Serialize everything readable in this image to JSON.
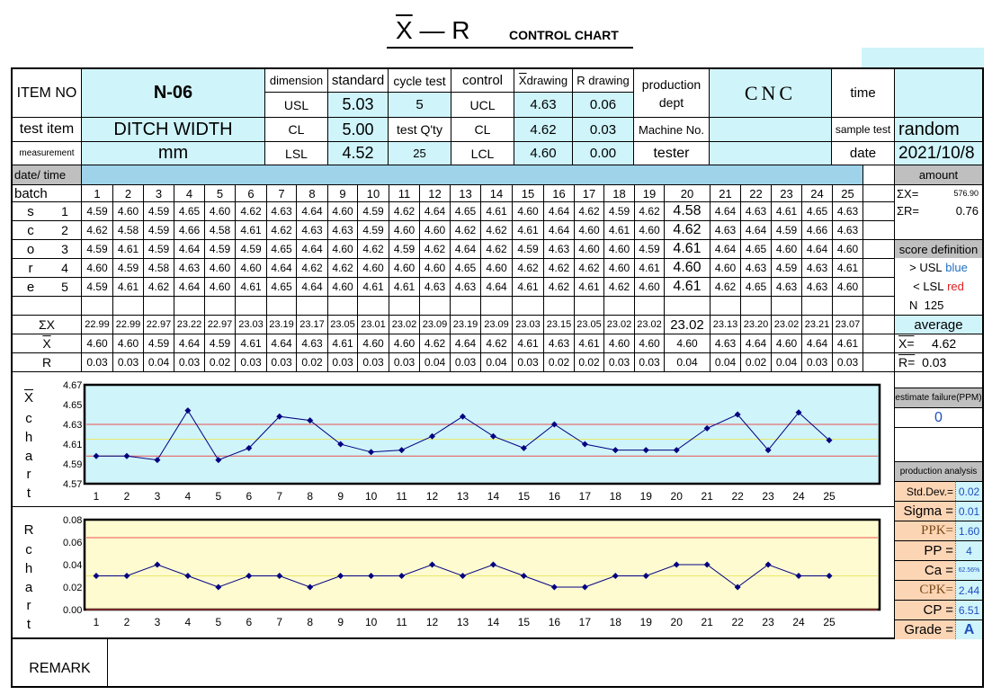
{
  "title": {
    "xr_x": "X",
    "xr_dash": " — ",
    "xr_r": "R",
    "main": "CONTROL CHART"
  },
  "header": {
    "item_no_label": "ITEM NO",
    "item_no": "N-06",
    "test_item_label": "test  item",
    "test_item": "DITCH WIDTH",
    "measurement_label": "measurement",
    "measurement": "mm",
    "dimension": "dimension",
    "usl": "USL",
    "cl": "CL",
    "lsl": "LSL",
    "standard": "standard",
    "usl_val": "5.03",
    "cl_val": "5.00",
    "lsl_val": "4.52",
    "cycle_test": "cycle test",
    "cycle_val": "5",
    "test_qty": "test Q'ty",
    "test_qty_val": "25",
    "control": "control",
    "ucl": "UCL",
    "cl2": "CL",
    "lcl": "LCL",
    "x_drawing_x": "X",
    "x_drawing": " drawing",
    "ucl_x": "4.63",
    "cl_x": "4.62",
    "lcl_x": "4.60",
    "r_drawing": "R drawing",
    "ucl_r": "0.06",
    "cl_r": "0.03",
    "lcl_r": "0.00",
    "production_dept": "production dept",
    "production_val": "CNC",
    "machine_no": "Machine No.",
    "tester": "tester",
    "time": "time",
    "sample_test": "sample test",
    "sample_val": "random",
    "date": "date",
    "date_val": "2021/10/8"
  },
  "table": {
    "date_time": "date/ time",
    "batch": "batch",
    "amount": "amount",
    "batches": [
      "1",
      "2",
      "3",
      "4",
      "5",
      "6",
      "7",
      "8",
      "9",
      "10",
      "11",
      "12",
      "13",
      "14",
      "15",
      "16",
      "17",
      "18",
      "19",
      "20",
      "21",
      "22",
      "23",
      "24",
      "25"
    ],
    "score_letters": [
      "s",
      "c",
      "o",
      "r",
      "e"
    ],
    "score_rows": [
      "1",
      "2",
      "3",
      "4",
      "5"
    ],
    "scores": [
      [
        "4.59",
        "4.60",
        "4.59",
        "4.65",
        "4.60",
        "4.62",
        "4.63",
        "4.64",
        "4.60",
        "4.59",
        "4.62",
        "4.64",
        "4.65",
        "4.61",
        "4.60",
        "4.64",
        "4.62",
        "4.59",
        "4.62",
        "4.58",
        "4.64",
        "4.63",
        "4.61",
        "4.65",
        "4.63"
      ],
      [
        "4.62",
        "4.58",
        "4.59",
        "4.66",
        "4.58",
        "4.61",
        "4.62",
        "4.63",
        "4.63",
        "4.59",
        "4.60",
        "4.60",
        "4.62",
        "4.62",
        "4.61",
        "4.64",
        "4.60",
        "4.61",
        "4.60",
        "4.62",
        "4.63",
        "4.64",
        "4.59",
        "4.66",
        "4.63"
      ],
      [
        "4.59",
        "4.61",
        "4.59",
        "4.64",
        "4.59",
        "4.59",
        "4.65",
        "4.64",
        "4.60",
        "4.62",
        "4.59",
        "4.62",
        "4.64",
        "4.62",
        "4.59",
        "4.63",
        "4.60",
        "4.60",
        "4.59",
        "4.61",
        "4.64",
        "4.65",
        "4.60",
        "4.64",
        "4.60"
      ],
      [
        "4.60",
        "4.59",
        "4.58",
        "4.63",
        "4.60",
        "4.60",
        "4.64",
        "4.62",
        "4.62",
        "4.60",
        "4.60",
        "4.60",
        "4.65",
        "4.60",
        "4.62",
        "4.62",
        "4.62",
        "4.60",
        "4.61",
        "4.60",
        "4.60",
        "4.63",
        "4.59",
        "4.63",
        "4.61"
      ],
      [
        "4.59",
        "4.61",
        "4.62",
        "4.64",
        "4.60",
        "4.61",
        "4.65",
        "4.64",
        "4.60",
        "4.61",
        "4.61",
        "4.63",
        "4.63",
        "4.64",
        "4.61",
        "4.62",
        "4.61",
        "4.62",
        "4.60",
        "4.61",
        "4.62",
        "4.65",
        "4.63",
        "4.63",
        "4.60"
      ]
    ],
    "sumx_label": "ΣX",
    "sumx": [
      "22.99",
      "22.99",
      "22.97",
      "23.22",
      "22.97",
      "23.03",
      "23.19",
      "23.17",
      "23.05",
      "23.01",
      "23.02",
      "23.09",
      "23.19",
      "23.09",
      "23.03",
      "23.15",
      "23.05",
      "23.02",
      "23.02",
      "23.02",
      "23.13",
      "23.20",
      "23.02",
      "23.21",
      "23.07"
    ],
    "xbar_label": "X",
    "xbar": [
      "4.60",
      "4.60",
      "4.59",
      "4.64",
      "4.59",
      "4.61",
      "4.64",
      "4.63",
      "4.61",
      "4.60",
      "4.60",
      "4.62",
      "4.64",
      "4.62",
      "4.61",
      "4.63",
      "4.61",
      "4.60",
      "4.60",
      "4.60",
      "4.63",
      "4.64",
      "4.60",
      "4.64",
      "4.61"
    ],
    "r_label": "R",
    "r": [
      "0.03",
      "0.03",
      "0.04",
      "0.03",
      "0.02",
      "0.03",
      "0.03",
      "0.02",
      "0.03",
      "0.03",
      "0.03",
      "0.04",
      "0.03",
      "0.04",
      "0.03",
      "0.02",
      "0.02",
      "0.03",
      "0.03",
      "0.04",
      "0.04",
      "0.02",
      "0.04",
      "0.03",
      "0.03"
    ]
  },
  "summary": {
    "sum_x_label": "ΣX=",
    "sum_x": "576.90",
    "sum_r_label": "ΣR=",
    "sum_r": "0.76",
    "score_definition": "score definition",
    "gt_usl": "> USL",
    "gt_usl_color": "blue",
    "lt_lsl": "< LSL",
    "lt_lsl_color": "red",
    "n_label": "N",
    "n_val": "125",
    "average": "average",
    "xbarbar_label": "X=",
    "xbarbar": "4.62",
    "rbar_label": "R=",
    "rbar": "0.03",
    "estimate_failure": "estimate failure(PPM)",
    "ppm": "0",
    "production_analysis": "production analysis",
    "metrics": [
      {
        "label": "Std.Dev.=",
        "value": "0.02"
      },
      {
        "label": "Sigma =",
        "value": "0.01"
      },
      {
        "label": "PPK=",
        "value": "1.60"
      },
      {
        "label": "PP =",
        "value": "4"
      },
      {
        "label": "Ca =",
        "value": "62.56%"
      },
      {
        "label": "CPK=",
        "value": "2.44"
      },
      {
        "label": "CP =",
        "value": "6.51"
      },
      {
        "label": "Grade =",
        "value": "A"
      }
    ]
  },
  "xchart_label": [
    "X",
    "c",
    "h",
    "a",
    "r",
    "t"
  ],
  "rchart_label": [
    "R",
    "c",
    "h",
    "a",
    "r",
    "t"
  ],
  "remark": "REMARK",
  "chart_data": [
    {
      "type": "line",
      "categories": [
        "1",
        "2",
        "3",
        "4",
        "5",
        "6",
        "7",
        "8",
        "9",
        "10",
        "11",
        "12",
        "13",
        "14",
        "15",
        "16",
        "17",
        "18",
        "19",
        "20",
        "21",
        "22",
        "23",
        "24",
        "25"
      ],
      "series": [
        {
          "values": [
            4.598,
            4.598,
            4.594,
            4.644,
            4.594,
            4.606,
            4.638,
            4.634,
            4.61,
            4.602,
            4.604,
            4.618,
            4.638,
            4.618,
            4.606,
            4.63,
            4.61,
            4.604,
            4.604,
            4.604,
            4.626,
            4.64,
            4.604,
            4.642,
            4.614
          ]
        }
      ],
      "ylim": [
        4.57,
        4.67
      ],
      "yticks": [
        "4.67",
        "4.65",
        "4.63",
        "4.61",
        "4.59",
        "4.57"
      ],
      "ucl": 4.63,
      "cl": 4.615,
      "lcl": 4.598,
      "colors": {
        "bg": "#cff4fa",
        "line": "#000080",
        "limit": "#e8504f",
        "center": "#e8e86a"
      }
    },
    {
      "type": "line",
      "categories": [
        "1",
        "2",
        "3",
        "4",
        "5",
        "6",
        "7",
        "8",
        "9",
        "10",
        "11",
        "12",
        "13",
        "14",
        "15",
        "16",
        "17",
        "18",
        "19",
        "20",
        "21",
        "22",
        "23",
        "24",
        "25"
      ],
      "series": [
        {
          "values": [
            0.03,
            0.03,
            0.04,
            0.03,
            0.02,
            0.03,
            0.03,
            0.02,
            0.03,
            0.03,
            0.03,
            0.04,
            0.03,
            0.04,
            0.03,
            0.02,
            0.02,
            0.03,
            0.03,
            0.04,
            0.04,
            0.02,
            0.04,
            0.03,
            0.03
          ]
        }
      ],
      "ylim": [
        0,
        0.08
      ],
      "yticks": [
        "0.08",
        "0.06",
        "0.04",
        "0.02",
        "0.00"
      ],
      "ucl": 0.064,
      "cl": 0.03,
      "lcl": 0,
      "colors": {
        "bg": "#fffbd0",
        "line": "#000080",
        "limit": "#e8504f",
        "center": "#e8e86a"
      }
    }
  ]
}
